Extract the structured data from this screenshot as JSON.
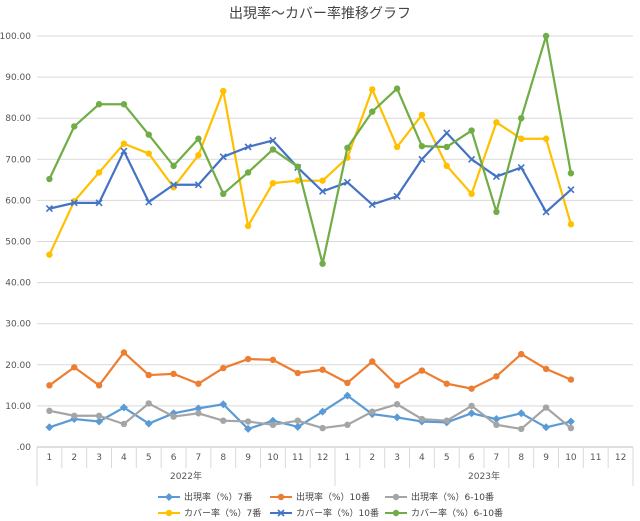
{
  "chart_data": {
    "type": "line",
    "title": "出現率〜カバー率推移グラフ",
    "ylim": [
      0,
      100
    ],
    "y_ticks": [
      "100.00",
      "90.00",
      "80.00",
      "70.00",
      "60.00",
      "50.00",
      "40.00",
      "30.00",
      "20.00",
      "10.00",
      ".00"
    ],
    "x_month_labels": [
      "1",
      "2",
      "3",
      "4",
      "5",
      "6",
      "7",
      "8",
      "9",
      "10",
      "11",
      "12",
      "1",
      "2",
      "3",
      "4",
      "5",
      "6",
      "7",
      "8",
      "9",
      "10",
      "11",
      "12"
    ],
    "year_groups": [
      "2022年",
      "2023年"
    ],
    "grid": true,
    "legend_position": "bottom",
    "series": [
      {
        "name": "出現率（%）7番",
        "color": "#5B9BD5",
        "marker": "diamond",
        "values": [
          4.8,
          6.8,
          6.2,
          9.6,
          5.7,
          8.2,
          9.4,
          10.4,
          4.4,
          6.4,
          4.9,
          8.6,
          12.5,
          8.0,
          7.2,
          6.2,
          6.0,
          8.2,
          6.8,
          8.2,
          4.8,
          6.2,
          null,
          null
        ]
      },
      {
        "name": "出現率（%）10番",
        "color": "#ED7D31",
        "marker": "circle",
        "values": [
          15.0,
          19.4,
          15.0,
          23.0,
          17.5,
          17.8,
          15.4,
          19.2,
          21.4,
          21.2,
          18.0,
          18.8,
          15.6,
          20.8,
          15.0,
          18.6,
          15.4,
          14.2,
          17.2,
          22.6,
          19.0,
          16.4,
          null,
          null
        ]
      },
      {
        "name": "出現率（%）6-10番",
        "color": "#A5A5A5",
        "marker": "circle",
        "values": [
          8.8,
          7.6,
          7.6,
          5.6,
          10.6,
          7.4,
          8.2,
          6.4,
          6.2,
          5.4,
          6.4,
          4.6,
          5.4,
          8.6,
          10.4,
          6.8,
          6.4,
          10.0,
          5.4,
          4.4,
          9.6,
          4.6,
          null,
          null
        ]
      },
      {
        "name": "カバー率（%）7番",
        "color": "#FFC000",
        "marker": "circle",
        "values": [
          46.8,
          59.8,
          66.8,
          73.8,
          71.4,
          63.2,
          71.0,
          86.6,
          53.8,
          64.2,
          64.8,
          64.8,
          70.4,
          87.0,
          73.0,
          80.8,
          68.4,
          61.6,
          79.0,
          75.0,
          75.0,
          54.2,
          null,
          null
        ]
      },
      {
        "name": "カバー率（%）10番",
        "color": "#4472C4",
        "marker": "x",
        "values": [
          58.0,
          59.4,
          59.4,
          72.0,
          59.6,
          63.8,
          63.8,
          70.6,
          73.0,
          74.6,
          68.0,
          62.2,
          64.4,
          59.0,
          61.0,
          70.0,
          76.4,
          70.0,
          65.8,
          68.0,
          57.2,
          62.6,
          null,
          null
        ]
      },
      {
        "name": "カバー率（%）6-10番",
        "color": "#70AD47",
        "marker": "circle",
        "values": [
          65.2,
          78.0,
          83.4,
          83.4,
          76.0,
          68.4,
          75.0,
          61.6,
          66.8,
          72.4,
          68.2,
          44.6,
          72.8,
          81.6,
          87.2,
          73.2,
          73.0,
          77.0,
          57.2,
          80.0,
          100.0,
          66.6,
          null,
          null
        ]
      }
    ]
  }
}
